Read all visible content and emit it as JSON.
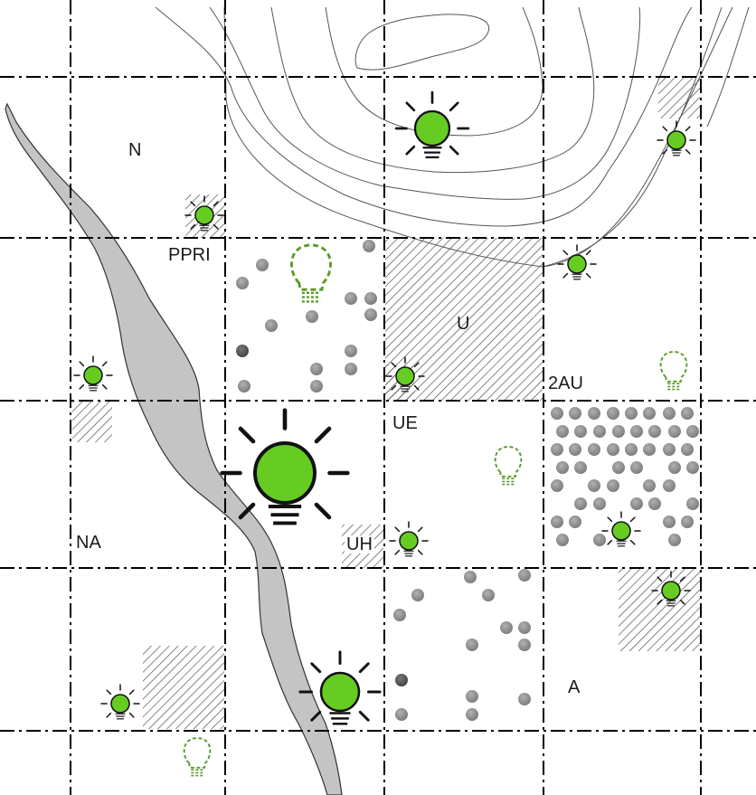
{
  "map": {
    "zones": [
      {
        "id": "N",
        "label": "N"
      },
      {
        "id": "PPRI",
        "label": "PPRI"
      },
      {
        "id": "U",
        "label": "U"
      },
      {
        "id": "2AU",
        "label": "2AU"
      },
      {
        "id": "UE",
        "label": "UE"
      },
      {
        "id": "UH",
        "label": "UH"
      },
      {
        "id": "NA",
        "label": "NA"
      },
      {
        "id": "A",
        "label": "A"
      }
    ],
    "colors": {
      "river": "#c4c4c4",
      "bulb": "#66cc22",
      "bulb_outline_dashed": "#5a9a2a",
      "grid": "#000000",
      "contour": "#555555",
      "hatch": "#444444",
      "dot": "#8c8c8c",
      "dot_dark": "#555555"
    },
    "legend_icons": [
      "lit-bulb-icon",
      "potential-bulb-icon",
      "hatched-area",
      "dot-pattern",
      "contour-line",
      "river"
    ]
  }
}
